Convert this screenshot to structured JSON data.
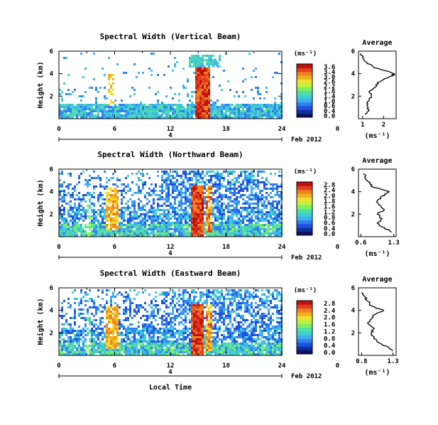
{
  "chart_data": [
    {
      "type": "heatmap",
      "title": "Spectral Width (Vertical Beam)",
      "ylabel": "Height (km)",
      "yticks": [
        "6",
        "4",
        "2"
      ],
      "xticks": [
        "0",
        "6",
        "12",
        "18",
        "24",
        "0"
      ],
      "day_label": "4",
      "month_label": "Feb 2012",
      "colorbar_unit": "(ms⁻¹)",
      "colorbar_ticks": [
        "3.6",
        "3.4",
        "3.0",
        "2.6",
        "2.2",
        "1.8",
        "1.4",
        "1.0",
        "0.6",
        "0.4",
        "0.0"
      ],
      "avg_title": "Average",
      "avg_yticks": [
        "6",
        "4",
        "2"
      ],
      "avg_xticks": [
        "1",
        "2"
      ],
      "avg_xlabel": "(ms⁻¹)",
      "avg_xlim": [
        0.8,
        2.6
      ],
      "avg_profile": {
        "height_km": [
          0.4,
          0.8,
          1.2,
          1.6,
          2.0,
          2.4,
          2.8,
          3.2,
          3.5,
          3.8,
          4.0,
          4.3,
          4.6,
          5.0,
          5.4,
          5.8
        ],
        "width": [
          1.1,
          1.3,
          1.2,
          1.3,
          1.4,
          1.3,
          1.6,
          1.7,
          2.0,
          2.4,
          2.5,
          2.0,
          1.5,
          1.2,
          1.0,
          0.9
        ]
      },
      "features": [
        {
          "hour": 5.5,
          "color": "#f0a020",
          "intensity": "moderate"
        },
        {
          "hour": 15.0,
          "color": "#e02020",
          "intensity": "high"
        }
      ]
    },
    {
      "type": "heatmap",
      "title": "Spectral Width (Northward Beam)",
      "ylabel": "Height (km)",
      "yticks": [
        "6",
        "4",
        "2"
      ],
      "xticks": [
        "0",
        "6",
        "12",
        "18",
        "24",
        "0"
      ],
      "day_label": "4",
      "month_label": "Feb 2012",
      "colorbar_unit": "(ms⁻¹)",
      "colorbar_ticks": [
        "2.8",
        "2.4",
        "2.0",
        "1.8",
        "1.6",
        "1.2",
        "0.8",
        "0.6",
        "0.4",
        "0.0"
      ],
      "avg_title": "Average",
      "avg_yticks": [
        "6",
        "4",
        "2"
      ],
      "avg_xticks": [
        "0.6",
        "1.3"
      ],
      "avg_xlabel": "(ms⁻¹)",
      "avg_xlim": [
        0.55,
        1.35
      ],
      "avg_profile": {
        "height_km": [
          0.4,
          0.8,
          1.2,
          1.6,
          2.0,
          2.4,
          2.8,
          3.2,
          3.6,
          4.0,
          4.4,
          4.8,
          5.2,
          5.6
        ],
        "width": [
          1.25,
          1.1,
          0.95,
          1.05,
          0.95,
          1.1,
          1.0,
          0.95,
          1.05,
          1.2,
          0.85,
          0.8,
          0.7,
          0.65
        ]
      },
      "features": [
        {
          "hour": 5.5,
          "color": "#e88020",
          "intensity": "moderate"
        },
        {
          "hour": 14.5,
          "color": "#d01010",
          "intensity": "high"
        },
        {
          "hour": 15.8,
          "color": "#e04020",
          "intensity": "high"
        }
      ]
    },
    {
      "type": "heatmap",
      "title": "Spectral Width (Eastward Beam)",
      "ylabel": "Height (km)",
      "yticks": [
        "6",
        "4",
        "2"
      ],
      "xticks": [
        "0",
        "6",
        "12",
        "18",
        "24",
        "0"
      ],
      "day_label": "4",
      "month_label": "Feb 2012",
      "colorbar_unit": "(ms⁻¹)",
      "colorbar_ticks": [
        "2.8",
        "2.4",
        "2.0",
        "1.6",
        "1.2",
        "0.8",
        "0.4",
        "0.0"
      ],
      "avg_title": "Average",
      "avg_yticks": [
        "6",
        "4",
        "2"
      ],
      "avg_xticks": [
        "0.8",
        "1.3"
      ],
      "avg_xlabel": "(ms⁻¹)",
      "avg_xlim": [
        0.75,
        1.35
      ],
      "avg_profile": {
        "height_km": [
          0.4,
          0.8,
          1.2,
          1.6,
          2.0,
          2.4,
          2.8,
          3.2,
          3.6,
          4.0,
          4.4,
          4.8,
          5.2,
          5.6
        ],
        "width": [
          1.3,
          1.2,
          1.05,
          1.0,
          0.95,
          1.0,
          0.9,
          0.95,
          1.0,
          1.15,
          0.95,
          0.9,
          0.85,
          0.8
        ]
      },
      "features": [
        {
          "hour": 5.5,
          "color": "#f08020",
          "intensity": "moderate"
        },
        {
          "hour": 14.5,
          "color": "#d01010",
          "intensity": "high"
        },
        {
          "hour": 16.0,
          "color": "#e03020",
          "intensity": "high"
        }
      ]
    }
  ],
  "xlabel": "Local Time"
}
